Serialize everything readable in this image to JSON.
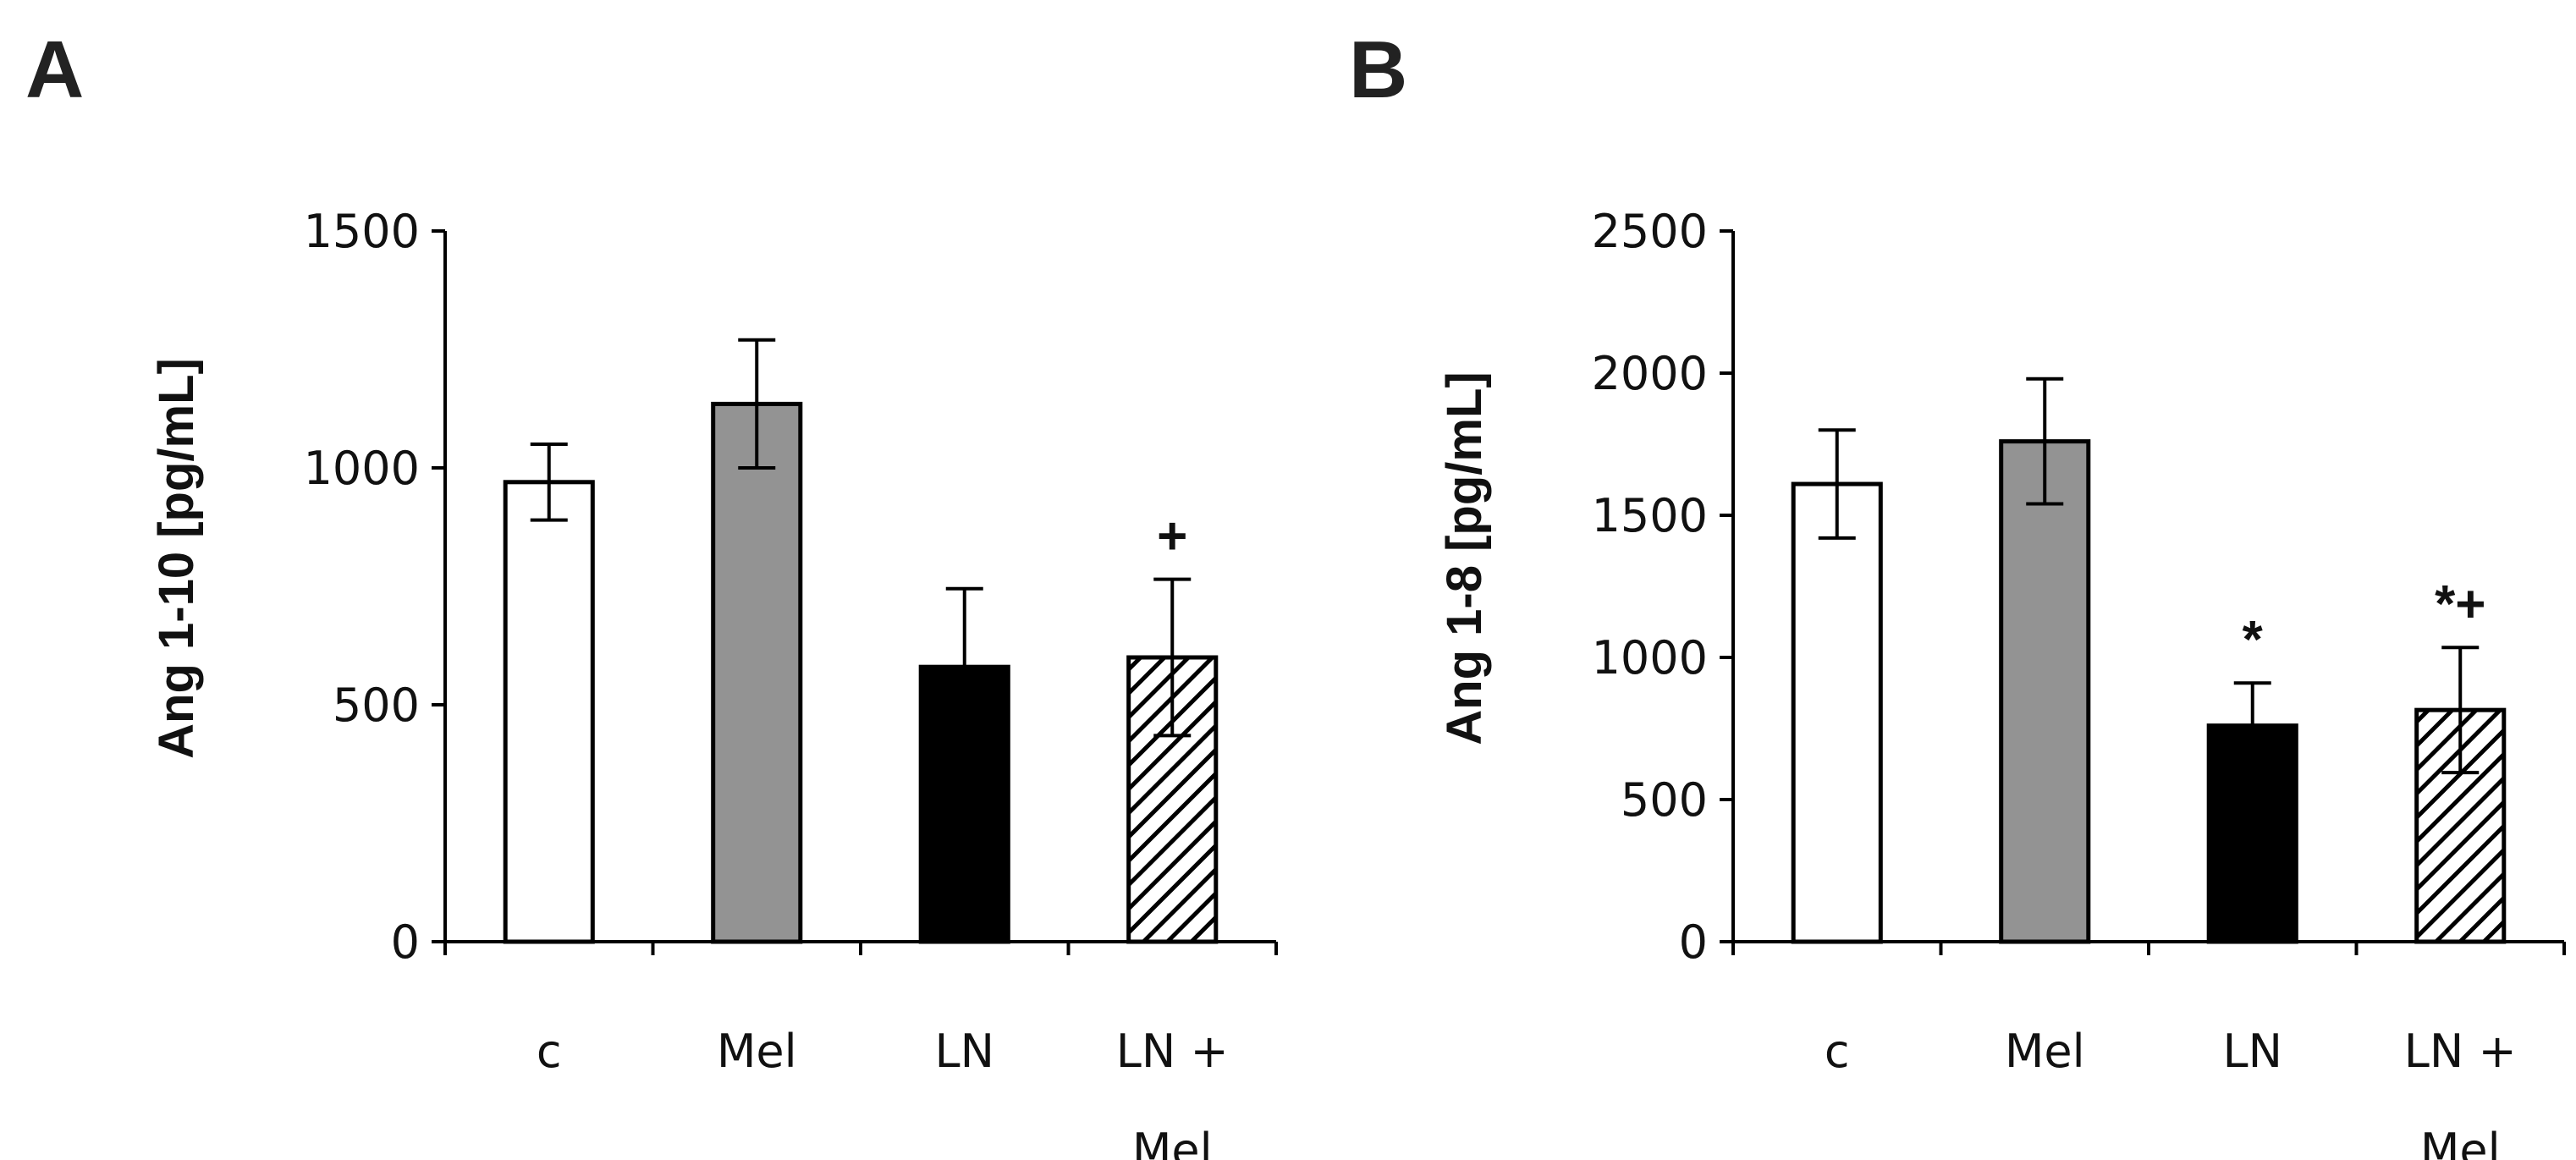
{
  "chart_data": [
    {
      "panel": "A",
      "type": "bar",
      "title": "",
      "xlabel": "",
      "ylabel": "Ang 1-10 [pg/mL]",
      "ylim": [
        0,
        1500
      ],
      "yticks": [
        0,
        500,
        1000,
        1500
      ],
      "grid": false,
      "categories": [
        [
          "c"
        ],
        [
          "Mel"
        ],
        [
          "LN"
        ],
        [
          "LN +",
          "Mel"
        ]
      ],
      "values": [
        970,
        1135,
        580,
        600
      ],
      "errors": [
        80,
        135,
        165,
        165
      ],
      "fills": [
        "white",
        "gray",
        "black",
        "hatched"
      ],
      "annotations": [
        "",
        "",
        "",
        "+"
      ]
    },
    {
      "panel": "B",
      "type": "bar",
      "title": "",
      "xlabel": "",
      "ylabel": "Ang 1-8 [pg/mL]",
      "ylim": [
        0,
        2500
      ],
      "yticks": [
        0,
        500,
        1000,
        1500,
        2000,
        2500
      ],
      "grid": false,
      "categories": [
        [
          "c"
        ],
        [
          "Mel"
        ],
        [
          "LN"
        ],
        [
          "LN +",
          "Mel"
        ]
      ],
      "values": [
        1610,
        1760,
        760,
        815
      ],
      "errors": [
        190,
        220,
        150,
        220
      ],
      "fills": [
        "white",
        "gray",
        "black",
        "hatched"
      ],
      "annotations": [
        "",
        "",
        "*",
        "*+"
      ]
    }
  ]
}
